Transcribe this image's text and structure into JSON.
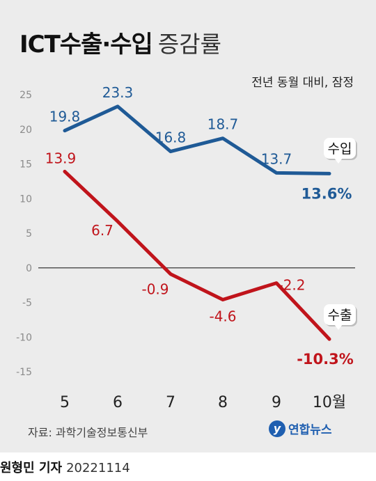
{
  "title": {
    "main": "ICT수출·수입",
    "sub": "증감률"
  },
  "subtitle": "전년 동월 대비, 잠정",
  "source": "자료: 과학기술정보통신부",
  "logo": {
    "mark": "y",
    "text": "연합뉴스"
  },
  "credit": {
    "name": "원형민 기자",
    "date": "20221114"
  },
  "colors": {
    "import": "#1f5a96",
    "export": "#c0141b",
    "axis": "#888888",
    "panel": "#ececec"
  },
  "chart_data": {
    "type": "line",
    "categories": [
      "5",
      "6",
      "7",
      "8",
      "9",
      "10월"
    ],
    "ylim": [
      -15,
      25
    ],
    "yticks": [
      "25",
      "20",
      "15",
      "10",
      "5",
      "0",
      "-5",
      "-10",
      "-15"
    ],
    "grid": false,
    "series": [
      {
        "name": "수입",
        "values": [
          19.8,
          23.3,
          16.8,
          18.7,
          13.7,
          13.6
        ],
        "labels": [
          "19.8",
          "23.3",
          "16.8",
          "18.7",
          "13.7",
          "13.6%"
        ]
      },
      {
        "name": "수출",
        "values": [
          13.9,
          6.7,
          -0.9,
          -4.6,
          -2.2,
          -10.3
        ],
        "labels": [
          "13.9",
          "6.7",
          "-0.9",
          "-4.6",
          "-2.2",
          "-10.3%"
        ]
      }
    ]
  }
}
